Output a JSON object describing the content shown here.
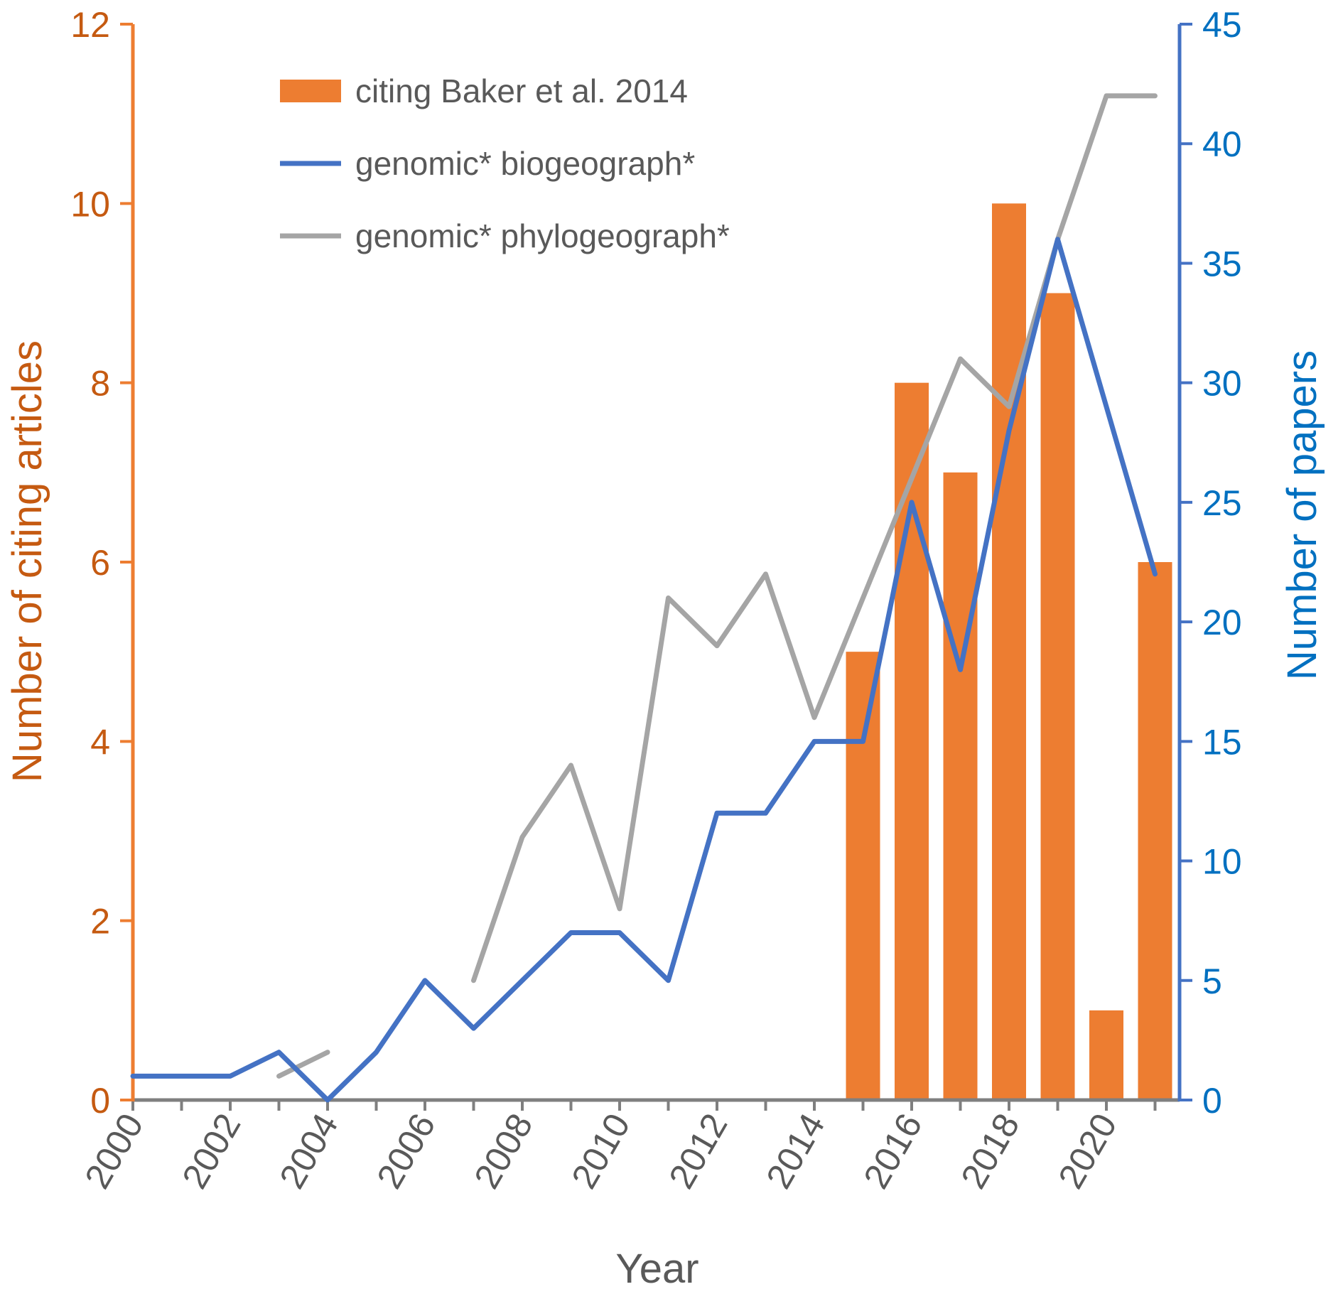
{
  "chart_data": {
    "type": "bar+line",
    "x_label": "Year",
    "y_left_label": "Number of citing articles",
    "y_right_label": "Number of papers",
    "y_left_range": [
      0,
      12
    ],
    "y_left_ticks": [
      "0",
      "2",
      "4",
      "6",
      "8",
      "10",
      "12"
    ],
    "y_right_range": [
      0,
      45
    ],
    "y_right_ticks": [
      "0",
      "5",
      "10",
      "15",
      "20",
      "25",
      "30",
      "35",
      "40",
      "45"
    ],
    "x_range": [
      2000,
      2021
    ],
    "x_ticks": [
      "2000",
      "2002",
      "2004",
      "2006",
      "2008",
      "2010",
      "2012",
      "2014",
      "2016",
      "2018",
      "2020"
    ],
    "grid": false,
    "legend_position": "top-left",
    "colors": {
      "left_axis": "#ED7D31",
      "left_text": "#C55A11",
      "right_axis": "#4472C4",
      "right_text": "#0070C0",
      "bars": "#ED7D31",
      "biogeo_line": "#4472C4",
      "phylogeo_line": "#A5A5A5",
      "x_axis": "#7F7F7F",
      "x_text": "#595959"
    },
    "bar_series": {
      "name": "citing Baker et al. 2014",
      "axis": "left",
      "x": [
        2015,
        2016,
        2017,
        2018,
        2019,
        2020,
        2021
      ],
      "values": [
        5,
        8,
        7,
        10,
        9,
        1,
        6
      ]
    },
    "line_series": [
      {
        "name": "genomic* biogeograph*",
        "axis": "right",
        "x": [
          2000,
          2001,
          2002,
          2003,
          2004,
          2005,
          2006,
          2007,
          2008,
          2009,
          2010,
          2011,
          2012,
          2013,
          2014,
          2015,
          2016,
          2017,
          2018,
          2019,
          2020,
          2021
        ],
        "values": [
          1,
          1,
          1,
          2,
          0,
          2,
          5,
          3,
          5,
          7,
          7,
          5,
          12,
          12,
          15,
          15,
          25,
          18,
          28,
          36,
          29,
          22
        ]
      },
      {
        "name": "genomic* phylogeograph*",
        "axis": "right",
        "segments": [
          {
            "x": [
              2003,
              2004
            ],
            "values": [
              1,
              2
            ]
          },
          {
            "x": [
              2007,
              2008,
              2009,
              2010,
              2011,
              2012,
              2013,
              2014,
              2015,
              2016,
              2017,
              2018,
              2019,
              2020,
              2021
            ],
            "values": [
              5,
              11,
              14,
              8,
              21,
              19,
              22,
              16,
              21,
              26,
              31,
              29,
              36,
              42,
              42
            ]
          }
        ]
      }
    ]
  }
}
